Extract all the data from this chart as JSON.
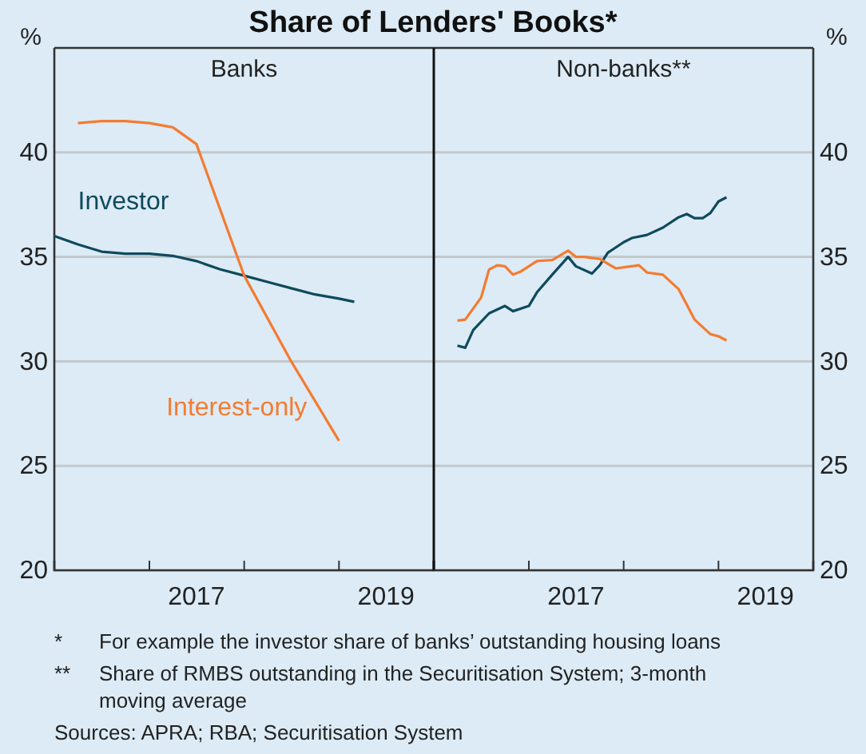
{
  "chart_data": [
    {
      "type": "line",
      "title": "Banks",
      "ylabel": "%",
      "xlim": [
        "2016-01",
        "2020-01"
      ],
      "xticks": [
        {
          "value": "2017-01",
          "label": null
        },
        {
          "value": "2018-01",
          "label": null
        },
        {
          "value": "2019-01",
          "label": null
        },
        {
          "value": "2017-07",
          "label": "2017"
        },
        {
          "value": "2019-07",
          "label": "2019"
        }
      ],
      "ylim": [
        20,
        45
      ],
      "yticks": [
        20,
        25,
        30,
        35,
        40
      ],
      "grid": "y",
      "series": [
        {
          "name": "Investor",
          "color": "#0f4a5c",
          "x": [
            "2016-01",
            "2016-04",
            "2016-07",
            "2016-10",
            "2017-01",
            "2017-04",
            "2017-07",
            "2017-10",
            "2018-01",
            "2018-04",
            "2018-07",
            "2018-10",
            "2019-01",
            "2019-03"
          ],
          "values": [
            36.0,
            35.6,
            35.25,
            35.15,
            35.15,
            35.05,
            34.8,
            34.4,
            34.1,
            33.8,
            33.5,
            33.2,
            33.0,
            32.85
          ]
        },
        {
          "name": "Interest-only",
          "color": "#f47b30",
          "x": [
            "2016-04",
            "2016-07",
            "2016-10",
            "2017-01",
            "2017-04",
            "2017-07",
            "2018-01",
            "2018-07",
            "2019-01"
          ],
          "values": [
            41.4,
            41.5,
            41.5,
            41.4,
            41.2,
            40.4,
            34.1,
            30.0,
            26.2
          ]
        }
      ],
      "annotations": [
        "Share of Lenders' Books*",
        "*\tFor example the investor share of banks’ outstanding housing loans",
        "**\tShare of RMBS outstanding in the Securitisation System; 3-month moving average",
        "Sources: APRA; RBA; Securitisation System"
      ]
    },
    {
      "type": "line",
      "title": "Non-banks**",
      "ylabel": "%",
      "xlim": [
        "2016-01",
        "2020-01"
      ],
      "xticks": [
        {
          "value": "2017-01",
          "label": null
        },
        {
          "value": "2018-01",
          "label": null
        },
        {
          "value": "2019-01",
          "label": null
        },
        {
          "value": "2017-07",
          "label": "2017"
        },
        {
          "value": "2019-07",
          "label": "2019"
        }
      ],
      "ylim": [
        20,
        45
      ],
      "yticks": [
        20,
        25,
        30,
        35,
        40
      ],
      "grid": "y",
      "series": [
        {
          "color": "#0f4a5c",
          "x": [
            "2016-04",
            "2016-05",
            "2016-06",
            "2016-08",
            "2016-10",
            "2016-11",
            "2017-01",
            "2017-02",
            "2017-04",
            "2017-06",
            "2017-07",
            "2017-09",
            "2017-10",
            "2017-11",
            "2018-01",
            "2018-02",
            "2018-04",
            "2018-06",
            "2018-08",
            "2018-09",
            "2018-10",
            "2018-11",
            "2018-12",
            "2019-01",
            "2019-02"
          ],
          "values": [
            30.75,
            30.65,
            31.5,
            32.3,
            32.65,
            32.4,
            32.65,
            33.3,
            34.15,
            35.0,
            34.55,
            34.2,
            34.6,
            35.2,
            35.7,
            35.9,
            36.05,
            36.4,
            36.9,
            37.05,
            36.85,
            36.85,
            37.1,
            37.65,
            37.85
          ]
        },
        {
          "color": "#f47b30",
          "x": [
            "2016-04",
            "2016-05",
            "2016-07",
            "2016-08",
            "2016-09",
            "2016-10",
            "2016-11",
            "2016-12",
            "2017-02",
            "2017-04",
            "2017-06",
            "2017-07",
            "2017-08",
            "2017-10",
            "2017-12",
            "2018-02",
            "2018-03",
            "2018-04",
            "2018-06",
            "2018-08",
            "2018-10",
            "2018-12",
            "2019-01",
            "2019-02"
          ],
          "values": [
            31.95,
            32.0,
            33.05,
            34.4,
            34.6,
            34.55,
            34.15,
            34.3,
            34.8,
            34.85,
            35.3,
            35.0,
            35.0,
            34.9,
            34.45,
            34.55,
            34.6,
            34.25,
            34.15,
            33.45,
            32.0,
            31.3,
            31.2,
            31.0
          ]
        }
      ]
    }
  ]
}
